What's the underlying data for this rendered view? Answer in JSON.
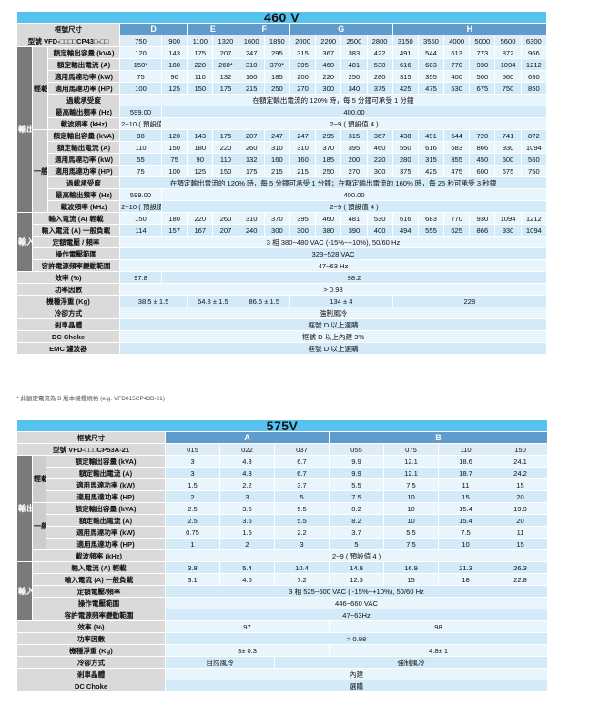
{
  "t460": {
    "title": "460 V",
    "frame_label": "框號尺寸",
    "frames": [
      {
        "name": "D",
        "span": 2
      },
      {
        "name": "E",
        "span": 2
      },
      {
        "name": "F",
        "span": 2
      },
      {
        "name": "G",
        "span": 4
      },
      {
        "name": "H",
        "span": 6
      }
    ],
    "model_label": "型號 VFD-□□□□CP43□-□□",
    "models": [
      "750",
      "900",
      "1100",
      "1320",
      "1600",
      "1850",
      "2000",
      "2200",
      "2500",
      "2800",
      "3150",
      "3550",
      "4000",
      "5000",
      "5600",
      "6300"
    ],
    "sections": [
      {
        "label": "輸出",
        "groups": [
          {
            "label": "輕載",
            "rows": [
              {
                "label": "額定輸出容量 (kVA)",
                "cells": [
                  "120",
                  "143",
                  "175",
                  "207",
                  "247",
                  "295",
                  "315",
                  "367",
                  "383",
                  "422",
                  "491",
                  "544",
                  "613",
                  "773",
                  "872",
                  "966"
                ]
              },
              {
                "label": "額定輸出電流 (A)",
                "cells": [
                  "150*",
                  "180",
                  "220",
                  "260*",
                  "310",
                  "370*",
                  "395",
                  "460",
                  "481",
                  "530",
                  "616",
                  "683",
                  "770",
                  "930",
                  "1094",
                  "1212"
                ]
              },
              {
                "label": "適用馬達功率 (kW)",
                "cells": [
                  "75",
                  "90",
                  "110",
                  "132",
                  "160",
                  "185",
                  "200",
                  "220",
                  "250",
                  "280",
                  "315",
                  "355",
                  "400",
                  "500",
                  "560",
                  "630"
                ]
              },
              {
                "label": "適用馬達功率 (HP)",
                "cells": [
                  "100",
                  "125",
                  "150",
                  "175",
                  "215",
                  "250",
                  "270",
                  "300",
                  "340",
                  "375",
                  "425",
                  "475",
                  "530",
                  "675",
                  "750",
                  "850"
                ]
              },
              {
                "label": "過載承受度",
                "cells": [
                  {
                    "v": "在額定輸出電流的 120% 時，每 5 分鐘可承受 1 分鐘",
                    "span": 16
                  }
                ]
              },
              {
                "label": "最高輸出頻率 (Hz)",
                "cells": [
                  "599.00",
                  {
                    "v": "400.00",
                    "span": 15
                  }
                ]
              },
              {
                "label": "載波頻率 (kHz)",
                "tall": true,
                "cells": [
                  "2~10\n( 預設值 6 )",
                  {
                    "v": "2~9 ( 預設值 4 )",
                    "span": 15
                  }
                ]
              }
            ]
          },
          {
            "label": "一般負載",
            "rows": [
              {
                "label": "額定輸出容量 (kVA)",
                "cells": [
                  "88",
                  "120",
                  "143",
                  "175",
                  "207",
                  "247",
                  "247",
                  "295",
                  "315",
                  "367",
                  "438",
                  "491",
                  "544",
                  "720",
                  "741",
                  "872"
                ]
              },
              {
                "label": "額定輸出電流 (A)",
                "cells": [
                  "110",
                  "150",
                  "180",
                  "220",
                  "260",
                  "310",
                  "310",
                  "370",
                  "395",
                  "460",
                  "550",
                  "616",
                  "683",
                  "866",
                  "930",
                  "1094"
                ]
              },
              {
                "label": "適用馬達功率 (kW)",
                "cells": [
                  "55",
                  "75",
                  "90",
                  "110",
                  "132",
                  "160",
                  "160",
                  "185",
                  "200",
                  "220",
                  "280",
                  "315",
                  "355",
                  "450",
                  "500",
                  "560"
                ]
              },
              {
                "label": "適用馬達功率 (HP)",
                "cells": [
                  "75",
                  "100",
                  "125",
                  "150",
                  "175",
                  "215",
                  "215",
                  "250",
                  "270",
                  "300",
                  "375",
                  "425",
                  "475",
                  "600",
                  "675",
                  "750"
                ]
              },
              {
                "label": "過載承受度",
                "cells": [
                  {
                    "v": "在額定輸出電流的 120% 時，每 5 分鐘可承受 1 分鐘；在額定輸出電流的 160% 時，每 25 秒可承受 3 秒鐘",
                    "span": 16
                  }
                ]
              },
              {
                "label": "最高輸出頻率 (Hz)",
                "cells": [
                  "599.00",
                  {
                    "v": "400.00",
                    "span": 15
                  }
                ]
              },
              {
                "label": "載波頻率 (kHz)",
                "tall": true,
                "cells": [
                  "2~10\n( 預設值 6 )",
                  {
                    "v": "2~9 ( 預設值 4 )",
                    "span": 15
                  }
                ]
              }
            ]
          }
        ]
      },
      {
        "label": "輸入",
        "rows": [
          {
            "label": "輸入電流 (A) 輕載",
            "cells": [
              "150",
              "180",
              "220",
              "260",
              "310",
              "370",
              "395",
              "460",
              "481",
              "530",
              "616",
              "683",
              "770",
              "930",
              "1094",
              "1212"
            ]
          },
          {
            "label": "輸入電流 (A) 一般負載",
            "cells": [
              "114",
              "157",
              "167",
              "207",
              "240",
              "300",
              "300",
              "380",
              "390",
              "400",
              "494",
              "555",
              "625",
              "866",
              "930",
              "1094"
            ]
          },
          {
            "label": "定額電壓 / 頻率",
            "cells": [
              {
                "v": "3 相  380~480 VAC (-15%~+10%), 50/60 Hz",
                "span": 16
              }
            ]
          },
          {
            "label": "操作電壓範圍",
            "cells": [
              {
                "v": "323~528 VAC",
                "span": 16
              }
            ]
          },
          {
            "label": "容許電源頻率變動範圍",
            "cells": [
              {
                "v": "47~63 Hz",
                "span": 16
              }
            ]
          }
        ]
      }
    ],
    "rows": [
      {
        "label": "效率 (%)",
        "cells": [
          "97.8",
          {
            "v": "98.2",
            "span": 15
          }
        ]
      },
      {
        "label": "功率因數",
        "cells": [
          {
            "v": "> 0.98",
            "span": 16
          }
        ]
      },
      {
        "label": "機種淨重 (Kg)",
        "cells": [
          {
            "v": "38.5 ± 1.5",
            "span": 2
          },
          {
            "v": "64.8 ± 1.5",
            "span": 2
          },
          {
            "v": "86.5 ± 1.5",
            "span": 2
          },
          {
            "v": "134 ± 4",
            "span": 4
          },
          {
            "v": "228",
            "span": 6
          }
        ]
      },
      {
        "label": "冷卻方式",
        "cells": [
          {
            "v": "強制風冷",
            "span": 16
          }
        ]
      },
      {
        "label": "剎車晶體",
        "cells": [
          {
            "v": "框號 D 以上選購",
            "span": 16
          }
        ]
      },
      {
        "label": "DC Choke",
        "cells": [
          {
            "v": "框號 D 以上內建 3%",
            "span": 16
          }
        ]
      },
      {
        "label": "EMC 濾波器",
        "cells": [
          {
            "v": "框號 D 以上選購",
            "span": 16
          }
        ]
      }
    ],
    "footnote": "* 此額定電流為 B 版本機種規格 (e.g. VFD015CP43B-21)"
  },
  "t575": {
    "title": "575V",
    "frame_label": "框號尺寸",
    "frames": [
      {
        "name": "A",
        "span": 3
      },
      {
        "name": "B",
        "span": 4
      }
    ],
    "model_label": "型號 VFD-□□□CP53A-21",
    "models": [
      "015",
      "022",
      "037",
      "055",
      "075",
      "110",
      "150"
    ],
    "sections": [
      {
        "label": "輸出",
        "groups": [
          {
            "label": "輕載",
            "rows": [
              {
                "label": "額定輸出容量 (kVA)",
                "cells": [
                  "3",
                  "4.3",
                  "6.7",
                  "9.9",
                  "12.1",
                  "18.6",
                  "24.1"
                ]
              },
              {
                "label": "額定輸出電流 (A)",
                "cells": [
                  "3",
                  "4.3",
                  "6.7",
                  "9.9",
                  "12.1",
                  "18.7",
                  "24.2"
                ]
              },
              {
                "label": "適用馬達功率 (kW)",
                "cells": [
                  "1.5",
                  "2.2",
                  "3.7",
                  "5.5",
                  "7.5",
                  "11",
                  "15"
                ]
              },
              {
                "label": "適用馬達功率 (HP)",
                "cells": [
                  "2",
                  "3",
                  "5",
                  "7.5",
                  "10",
                  "15",
                  "20"
                ]
              }
            ]
          },
          {
            "label": "一般負載",
            "rows": [
              {
                "label": "額定輸出容量 (kVA)",
                "cells": [
                  "2.5",
                  "3.6",
                  "5.5",
                  "8.2",
                  "10",
                  "15.4",
                  "19.9"
                ]
              },
              {
                "label": "額定輸出電流 (A)",
                "cells": [
                  "2.5",
                  "3.6",
                  "5.5",
                  "8.2",
                  "10",
                  "15.4",
                  "20"
                ]
              },
              {
                "label": "適用馬達功率 (kW)",
                "cells": [
                  "0.75",
                  "1.5",
                  "2.2",
                  "3.7",
                  "5.5",
                  "7.5",
                  "11"
                ]
              },
              {
                "label": "適用馬達功率 (HP)",
                "cells": [
                  "1",
                  "2",
                  "3",
                  "5",
                  "7.5",
                  "10",
                  "15"
                ]
              }
            ]
          }
        ],
        "rows": [
          {
            "label": "載波頻率 (kHz)",
            "cells": [
              {
                "v": "2~9 ( 預設值 4 )",
                "span": 7
              }
            ]
          }
        ]
      },
      {
        "label": "輸入",
        "rows": [
          {
            "label": "輸入電流 (A) 輕載",
            "cells": [
              "3.8",
              "5.4",
              "10.4",
              "14.9",
              "16.9",
              "21.3",
              "26.3"
            ]
          },
          {
            "label": "輸入電流 (A) 一般負載",
            "cells": [
              "3.1",
              "4.5",
              "7.2",
              "12.3",
              "15",
              "18",
              "22.8"
            ]
          },
          {
            "label": "定額電壓/頻率",
            "cells": [
              {
                "v": "3 相  525~600 VAC ( -15%~+10%), 50/60 Hz",
                "span": 7
              }
            ]
          },
          {
            "label": "操作電壓範圍",
            "cells": [
              {
                "v": "446~660 VAC",
                "span": 7
              }
            ]
          },
          {
            "label": "容許電源頻率變動範圍",
            "cells": [
              {
                "v": "47~63Hz",
                "span": 7
              }
            ]
          }
        ]
      }
    ],
    "rows": [
      {
        "label": "效率 (%)",
        "cells": [
          {
            "v": "97",
            "span": 3
          },
          {
            "v": "98",
            "span": 4
          }
        ]
      },
      {
        "label": "功率因數",
        "cells": [
          {
            "v": "> 0.98",
            "span": 7
          }
        ]
      },
      {
        "label": "機種淨重 (Kg)",
        "cells": [
          {
            "v": "3± 0.3",
            "span": 3
          },
          {
            "v": "4.8± 1",
            "span": 4
          }
        ]
      },
      {
        "label": "冷卻方式",
        "cells": [
          {
            "v": "自然風冷",
            "span": 2
          },
          {
            "v": "強制風冷",
            "span": 5
          }
        ]
      },
      {
        "label": "剎車晶體",
        "cells": [
          {
            "v": "內建",
            "span": 7
          }
        ]
      },
      {
        "label": "DC Choke",
        "cells": [
          {
            "v": "選購",
            "span": 7
          }
        ]
      }
    ]
  }
}
